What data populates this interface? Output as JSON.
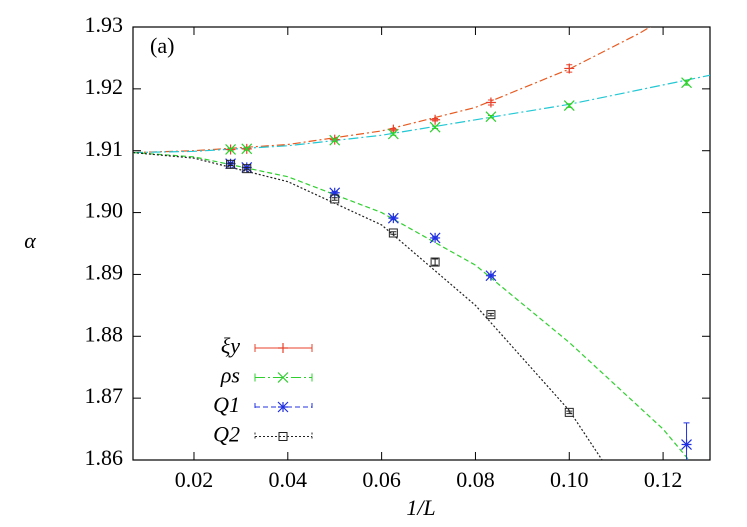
{
  "chart_data": {
    "type": "scatter",
    "annotation": "(a)",
    "x_label": "1/L",
    "y_label": "α",
    "xlim": [
      0.007,
      0.13
    ],
    "ylim": [
      1.86,
      1.93
    ],
    "xticks": [
      0.02,
      0.04,
      0.06,
      0.08,
      {
        "value": 0.1,
        "label": "0.10"
      },
      0.12
    ],
    "yticks": [
      1.86,
      1.87,
      1.88,
      1.89,
      {
        "value": 1.9,
        "label": "1.90"
      },
      1.91,
      1.92,
      1.93
    ],
    "legend": "lower left",
    "series": [
      {
        "name": "ξy",
        "color": "#e8402a",
        "marker": "plus",
        "x": [
          0.0278,
          0.03125,
          0.05,
          0.0625,
          0.0714,
          0.0833,
          0.1
        ],
        "values": [
          1.9102,
          1.9103,
          1.9118,
          1.9134,
          1.915,
          1.9178,
          1.9233
        ],
        "errors": [
          0.0002,
          0.0002,
          0.0002,
          0.0002,
          0.0002,
          0.0004,
          0.0006
        ],
        "fit": {
          "color": "#e85a20",
          "x": [
            0.007,
            0.02,
            0.04,
            0.06,
            0.08,
            0.1,
            0.115,
            0.12
          ],
          "values": [
            1.9097,
            1.91,
            1.911,
            1.9132,
            1.917,
            1.9232,
            1.929,
            1.9313
          ]
        }
      },
      {
        "name": "ρs",
        "color": "#2ed02e",
        "marker": "cross",
        "x": [
          0.0278,
          0.03125,
          0.05,
          0.0625,
          0.0714,
          0.0833,
          0.1,
          0.125
        ],
        "values": [
          1.9102,
          1.9103,
          1.9117,
          1.9127,
          1.9138,
          1.9155,
          1.9173,
          1.921
        ],
        "errors": [
          0.0002,
          0.0002,
          0.0002,
          0.0002,
          0.0002,
          0.0002,
          0.0003,
          0.0004
        ],
        "fit": {
          "color": "#22c8d4",
          "x": [
            0.007,
            0.02,
            0.04,
            0.06,
            0.08,
            0.1,
            0.13
          ],
          "values": [
            1.9097,
            1.9099,
            1.9108,
            1.9125,
            1.915,
            1.9175,
            1.9222
          ]
        }
      },
      {
        "name": "Q1",
        "color": "#2030e0",
        "marker": "star",
        "x": [
          0.0278,
          0.03125,
          0.05,
          0.0625,
          0.0714,
          0.0833,
          0.125
        ],
        "values": [
          1.9079,
          1.9073,
          1.9032,
          1.8991,
          1.8959,
          1.8898,
          1.8625
        ],
        "errors": [
          0.0002,
          0.0002,
          0.0002,
          0.0002,
          0.0002,
          0.0002,
          0.0035
        ],
        "fit": {
          "color": "#30d030",
          "x": [
            0.007,
            0.02,
            0.04,
            0.06,
            0.08,
            0.1,
            0.12,
            0.1255
          ],
          "values": [
            1.9097,
            1.909,
            1.9058,
            1.9,
            1.8915,
            1.879,
            1.865,
            1.86
          ]
        }
      },
      {
        "name": "Q2",
        "color": "#222222",
        "marker": "square",
        "x": [
          0.0278,
          0.03125,
          0.05,
          0.0625,
          0.0714,
          0.0833,
          0.1
        ],
        "values": [
          1.9078,
          1.9071,
          1.9022,
          1.8967,
          1.892,
          1.8835,
          1.8677
        ],
        "errors": [
          0.0002,
          0.0002,
          0.0002,
          0.0002,
          0.0005,
          0.0002,
          0.0002
        ],
        "fit": {
          "color": "#222222",
          "x": [
            0.007,
            0.02,
            0.04,
            0.06,
            0.08,
            0.1,
            0.107
          ],
          "values": [
            1.9097,
            1.9088,
            1.905,
            1.898,
            1.885,
            1.868,
            1.86
          ]
        }
      }
    ]
  }
}
